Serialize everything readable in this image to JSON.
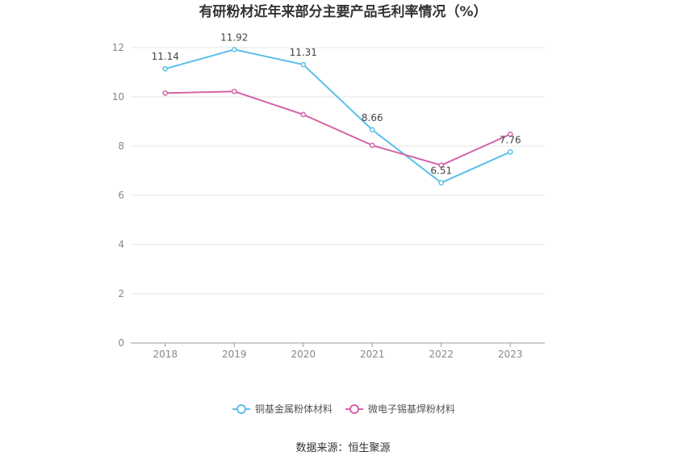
{
  "chart_data": {
    "type": "line",
    "title": "有研粉材近年来部分主要产品毛利率情况（%）",
    "xlabel": "",
    "ylabel": "",
    "x": [
      "2018",
      "2019",
      "2020",
      "2021",
      "2022",
      "2023"
    ],
    "ylim": [
      0,
      12
    ],
    "yticks": [
      "0",
      "2",
      "4",
      "6",
      "8",
      "10",
      "12"
    ],
    "grid": true,
    "legend_position": "bottom",
    "series": [
      {
        "name": "铜基金属粉体材料",
        "color": "#5bc0eb",
        "values": [
          11.14,
          11.92,
          11.31,
          8.66,
          6.51,
          7.76
        ],
        "labels": [
          "11.14",
          "11.92",
          "11.31",
          "8.66",
          "6.51",
          "7.76"
        ]
      },
      {
        "name": "微电子锡基焊粉材料",
        "color": "#d463a6",
        "values": [
          10.15,
          10.22,
          9.28,
          8.03,
          7.22,
          8.48
        ]
      }
    ],
    "source": "数据来源：恒生聚源"
  }
}
